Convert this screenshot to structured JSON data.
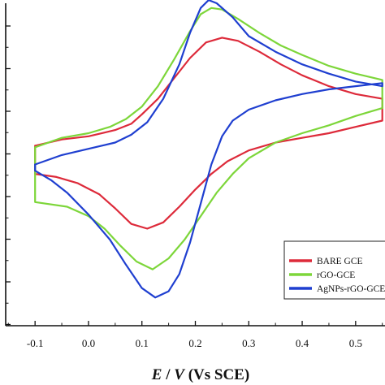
{
  "chart_data": {
    "type": "line",
    "xlabel": {
      "italic": "E",
      "sep": " / ",
      "italic2": "V",
      "rest": " (Vs SCE)"
    },
    "x_ticks": [
      "-0.1",
      "0.0",
      "0.1",
      "0.2",
      "0.3",
      "0.4",
      "0.5"
    ],
    "x_tick_values": [
      -0.1,
      0.0,
      0.1,
      0.2,
      0.3,
      0.4,
      0.5
    ],
    "xlim": [
      -0.155,
      0.555
    ],
    "ylim": [
      -1.03,
      1.03
    ],
    "legend": {
      "placement": "bottom-right"
    },
    "series": [
      {
        "name": "BARE GCE",
        "color": "#dd2a3a",
        "forward": [
          [
            -0.1,
            0.12
          ],
          [
            -0.05,
            0.16
          ],
          [
            0.0,
            0.18
          ],
          [
            0.05,
            0.22
          ],
          [
            0.08,
            0.26
          ],
          [
            0.1,
            0.32
          ],
          [
            0.13,
            0.42
          ],
          [
            0.16,
            0.55
          ],
          [
            0.19,
            0.68
          ],
          [
            0.22,
            0.78
          ],
          [
            0.25,
            0.81
          ],
          [
            0.28,
            0.79
          ],
          [
            0.32,
            0.72
          ],
          [
            0.36,
            0.64
          ],
          [
            0.4,
            0.57
          ],
          [
            0.45,
            0.5
          ],
          [
            0.5,
            0.45
          ],
          [
            0.55,
            0.42
          ]
        ],
        "reverse": [
          [
            0.55,
            0.28
          ],
          [
            0.5,
            0.24
          ],
          [
            0.45,
            0.2
          ],
          [
            0.4,
            0.17
          ],
          [
            0.35,
            0.14
          ],
          [
            0.3,
            0.09
          ],
          [
            0.26,
            0.02
          ],
          [
            0.23,
            -0.06
          ],
          [
            0.2,
            -0.16
          ],
          [
            0.17,
            -0.27
          ],
          [
            0.14,
            -0.37
          ],
          [
            0.11,
            -0.41
          ],
          [
            0.08,
            -0.38
          ],
          [
            0.05,
            -0.28
          ],
          [
            0.02,
            -0.19
          ],
          [
            -0.02,
            -0.12
          ],
          [
            -0.06,
            -0.08
          ],
          [
            -0.1,
            -0.06
          ]
        ]
      },
      {
        "name": "rGO-GCE",
        "color": "#7dd63a",
        "forward": [
          [
            -0.1,
            0.11
          ],
          [
            -0.05,
            0.17
          ],
          [
            0.0,
            0.2
          ],
          [
            0.04,
            0.24
          ],
          [
            0.07,
            0.29
          ],
          [
            0.1,
            0.37
          ],
          [
            0.13,
            0.5
          ],
          [
            0.16,
            0.67
          ],
          [
            0.19,
            0.85
          ],
          [
            0.21,
            0.96
          ],
          [
            0.23,
            1.0
          ],
          [
            0.25,
            0.99
          ],
          [
            0.28,
            0.93
          ],
          [
            0.32,
            0.84
          ],
          [
            0.36,
            0.76
          ],
          [
            0.4,
            0.7
          ],
          [
            0.45,
            0.63
          ],
          [
            0.5,
            0.58
          ],
          [
            0.55,
            0.54
          ]
        ],
        "reverse": [
          [
            0.55,
            0.36
          ],
          [
            0.5,
            0.31
          ],
          [
            0.45,
            0.25
          ],
          [
            0.4,
            0.2
          ],
          [
            0.35,
            0.14
          ],
          [
            0.3,
            0.04
          ],
          [
            0.27,
            -0.06
          ],
          [
            0.24,
            -0.18
          ],
          [
            0.21,
            -0.33
          ],
          [
            0.18,
            -0.48
          ],
          [
            0.15,
            -0.6
          ],
          [
            0.12,
            -0.67
          ],
          [
            0.09,
            -0.62
          ],
          [
            0.06,
            -0.52
          ],
          [
            0.03,
            -0.41
          ],
          [
            0.0,
            -0.33
          ],
          [
            -0.04,
            -0.27
          ],
          [
            -0.1,
            -0.24
          ]
        ]
      },
      {
        "name": "AgNPs-rGO-GCE",
        "color": "#1f3fd0",
        "forward": [
          [
            -0.1,
            0.0
          ],
          [
            -0.05,
            0.06
          ],
          [
            0.0,
            0.1
          ],
          [
            0.05,
            0.14
          ],
          [
            0.08,
            0.19
          ],
          [
            0.11,
            0.27
          ],
          [
            0.14,
            0.42
          ],
          [
            0.17,
            0.64
          ],
          [
            0.19,
            0.84
          ],
          [
            0.21,
            1.0
          ],
          [
            0.225,
            1.05
          ],
          [
            0.24,
            1.03
          ],
          [
            0.27,
            0.94
          ],
          [
            0.3,
            0.82
          ],
          [
            0.35,
            0.72
          ],
          [
            0.4,
            0.64
          ],
          [
            0.45,
            0.58
          ],
          [
            0.5,
            0.53
          ],
          [
            0.55,
            0.5
          ]
        ],
        "reverse": [
          [
            0.55,
            0.52
          ],
          [
            0.5,
            0.5
          ],
          [
            0.45,
            0.48
          ],
          [
            0.4,
            0.45
          ],
          [
            0.35,
            0.41
          ],
          [
            0.3,
            0.35
          ],
          [
            0.27,
            0.28
          ],
          [
            0.25,
            0.18
          ],
          [
            0.23,
            0.0
          ],
          [
            0.21,
            -0.25
          ],
          [
            0.19,
            -0.5
          ],
          [
            0.17,
            -0.7
          ],
          [
            0.15,
            -0.81
          ],
          [
            0.125,
            -0.85
          ],
          [
            0.1,
            -0.79
          ],
          [
            0.07,
            -0.64
          ],
          [
            0.04,
            -0.48
          ],
          [
            0.0,
            -0.32
          ],
          [
            -0.04,
            -0.18
          ],
          [
            -0.07,
            -0.1
          ],
          [
            -0.1,
            -0.04
          ]
        ]
      }
    ]
  }
}
